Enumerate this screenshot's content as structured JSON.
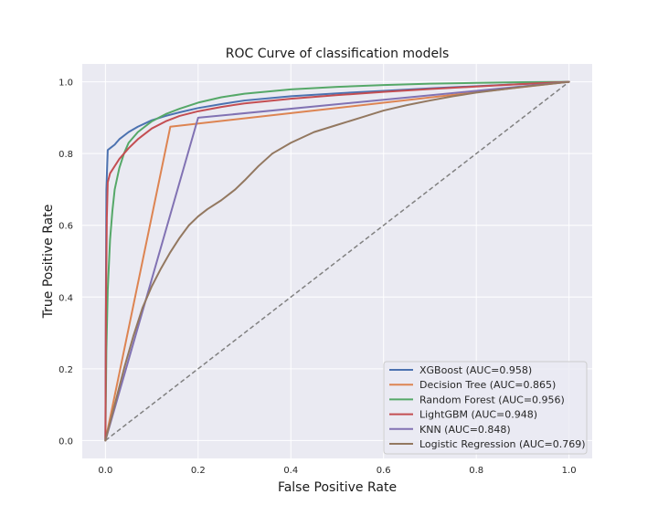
{
  "chart_data": {
    "type": "line",
    "title": "ROC Curve of classification models",
    "xlabel": "False Positive Rate",
    "ylabel": "True Positive Rate",
    "xlim": [
      -0.05,
      1.05
    ],
    "ylim": [
      -0.05,
      1.05
    ],
    "xticks": [
      0.0,
      0.2,
      0.4,
      0.6,
      0.8,
      1.0
    ],
    "yticks": [
      0.0,
      0.2,
      0.4,
      0.6,
      0.8,
      1.0
    ],
    "xtick_labels": [
      "0.0",
      "0.2",
      "0.4",
      "0.6",
      "0.8",
      "1.0"
    ],
    "ytick_labels": [
      "0.0",
      "0.2",
      "0.4",
      "0.6",
      "0.8",
      "1.0"
    ],
    "grid": true,
    "legend_position": "lower-right",
    "reference_line": {
      "name": "chance",
      "color": "#808080",
      "style": "dashed",
      "x": [
        0,
        1
      ],
      "y": [
        0,
        1
      ]
    },
    "series": [
      {
        "name": "XGBoost (AUC=0.958)",
        "color": "#4c72b0",
        "x": [
          0,
          0.001,
          0.002,
          0.005,
          0.01,
          0.02,
          0.03,
          0.05,
          0.07,
          0.1,
          0.13,
          0.16,
          0.2,
          0.25,
          0.3,
          0.4,
          0.5,
          0.6,
          0.7,
          0.8,
          0.9,
          1.0
        ],
        "y": [
          0,
          0.4,
          0.7,
          0.81,
          0.815,
          0.825,
          0.84,
          0.86,
          0.875,
          0.893,
          0.905,
          0.915,
          0.927,
          0.938,
          0.948,
          0.96,
          0.968,
          0.975,
          0.982,
          0.988,
          0.994,
          1.0
        ]
      },
      {
        "name": "Decision Tree (AUC=0.865)",
        "color": "#dd8452",
        "x": [
          0,
          0.14,
          1.0
        ],
        "y": [
          0,
          0.875,
          1.0
        ]
      },
      {
        "name": "Random Forest (AUC=0.956)",
        "color": "#55a868",
        "x": [
          0,
          0.002,
          0.005,
          0.01,
          0.015,
          0.02,
          0.03,
          0.04,
          0.05,
          0.07,
          0.1,
          0.13,
          0.16,
          0.2,
          0.25,
          0.3,
          0.4,
          0.5,
          0.6,
          0.7,
          0.8,
          0.9,
          1.0
        ],
        "y": [
          0,
          0.25,
          0.42,
          0.56,
          0.64,
          0.7,
          0.76,
          0.8,
          0.83,
          0.86,
          0.89,
          0.91,
          0.925,
          0.942,
          0.957,
          0.967,
          0.979,
          0.986,
          0.991,
          0.995,
          0.997,
          0.999,
          1.0
        ]
      },
      {
        "name": "LightGBM (AUC=0.948)",
        "color": "#c44e52",
        "x": [
          0,
          0.001,
          0.003,
          0.005,
          0.01,
          0.02,
          0.03,
          0.05,
          0.07,
          0.1,
          0.13,
          0.16,
          0.2,
          0.25,
          0.3,
          0.4,
          0.5,
          0.6,
          0.7,
          0.8,
          0.9,
          1.0
        ],
        "y": [
          0,
          0.35,
          0.62,
          0.72,
          0.745,
          0.765,
          0.785,
          0.815,
          0.84,
          0.87,
          0.89,
          0.905,
          0.918,
          0.93,
          0.94,
          0.953,
          0.963,
          0.972,
          0.98,
          0.987,
          0.994,
          1.0
        ]
      },
      {
        "name": "KNN (AUC=0.848)",
        "color": "#8172b3",
        "x": [
          0,
          0.2,
          1.0
        ],
        "y": [
          0,
          0.9,
          1.0
        ]
      },
      {
        "name": "Logistic Regression (AUC=0.769)",
        "color": "#937860",
        "x": [
          0,
          0.02,
          0.04,
          0.06,
          0.08,
          0.1,
          0.12,
          0.14,
          0.16,
          0.18,
          0.2,
          0.22,
          0.25,
          0.28,
          0.3,
          0.33,
          0.36,
          0.4,
          0.45,
          0.5,
          0.55,
          0.6,
          0.65,
          0.7,
          0.75,
          0.8,
          0.85,
          0.9,
          0.95,
          1.0
        ],
        "y": [
          0,
          0.1,
          0.2,
          0.29,
          0.37,
          0.43,
          0.48,
          0.525,
          0.565,
          0.6,
          0.625,
          0.645,
          0.67,
          0.7,
          0.725,
          0.765,
          0.8,
          0.83,
          0.86,
          0.88,
          0.9,
          0.92,
          0.935,
          0.948,
          0.96,
          0.97,
          0.978,
          0.986,
          0.993,
          1.0
        ]
      }
    ]
  }
}
